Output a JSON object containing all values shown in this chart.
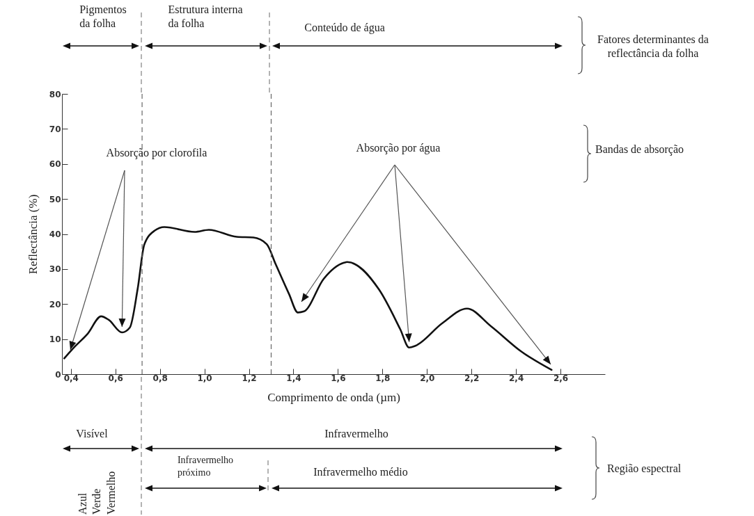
{
  "chart_data": {
    "type": "line",
    "xlabel": "Comprimento de onda (µm)",
    "ylabel": "Reflectância (%)",
    "x": [
      0.37,
      0.42,
      0.475,
      0.536,
      0.57,
      0.63,
      0.665,
      0.7,
      0.73,
      0.777,
      0.82,
      0.956,
      1.02,
      1.145,
      1.22,
      1.28,
      1.32,
      1.38,
      1.42,
      1.447,
      1.536,
      1.627,
      1.642,
      1.785,
      1.88,
      1.92,
      1.948,
      2.07,
      2.18,
      2.287,
      2.425,
      2.56
    ],
    "values": [
      4.5,
      8.0,
      11.5,
      16.5,
      15.5,
      11.9,
      13.3,
      24.3,
      37,
      41,
      42,
      40.6,
      41.2,
      39.2,
      39,
      37.1,
      31.4,
      22.9,
      17.6,
      17.9,
      27.2,
      31.8,
      32,
      24.1,
      12.8,
      7.6,
      8.1,
      14.6,
      18.7,
      13.7,
      6.4,
      1.2
    ],
    "color": "#111111",
    "xlim": [
      0.36,
      2.8
    ],
    "ylim": [
      0,
      80
    ],
    "xticks": [
      {
        "value": 0.4,
        "label": "0,4"
      },
      {
        "value": 0.6,
        "label": "0,6"
      },
      {
        "value": 0.8,
        "label": "0,8"
      },
      {
        "value": 1.0,
        "label": "1,0"
      },
      {
        "value": 1.2,
        "label": "1,2"
      },
      {
        "value": 1.4,
        "label": "1,4"
      },
      {
        "value": 1.6,
        "label": "1,6"
      },
      {
        "value": 1.8,
        "label": "1,8"
      },
      {
        "value": 2.0,
        "label": "2,0"
      },
      {
        "value": 2.2,
        "label": "2,2"
      },
      {
        "value": 2.4,
        "label": "2,4"
      },
      {
        "value": 2.6,
        "label": "2,6"
      }
    ],
    "yticks": [
      0,
      10,
      20,
      30,
      40,
      50,
      60,
      70,
      80
    ],
    "ref_lines": [
      {
        "axis": "x",
        "value": 0.72,
        "line_style": "dashed"
      },
      {
        "axis": "x",
        "value": 1.3,
        "line_style": "dashed"
      }
    ],
    "annotations": [
      "Pigmentos\nda folha",
      "Estrutura interna\nda folha",
      "Conteúdo de água",
      "Fatores determinantes da\nreflectância da folha",
      {
        "text": "Absorção por clorofila",
        "x": 0.63,
        "y": 11.9
      },
      {
        "text": "Absorção por água",
        "x": 1.92,
        "y": 7.6
      },
      "Bandas de absorção",
      "Visível",
      "Infravermelho",
      "Infravermelho\npróximo",
      "Infravermelho médio",
      "Região espectral",
      "Azul",
      "Verde",
      "Vermelho"
    ],
    "grid": false
  }
}
